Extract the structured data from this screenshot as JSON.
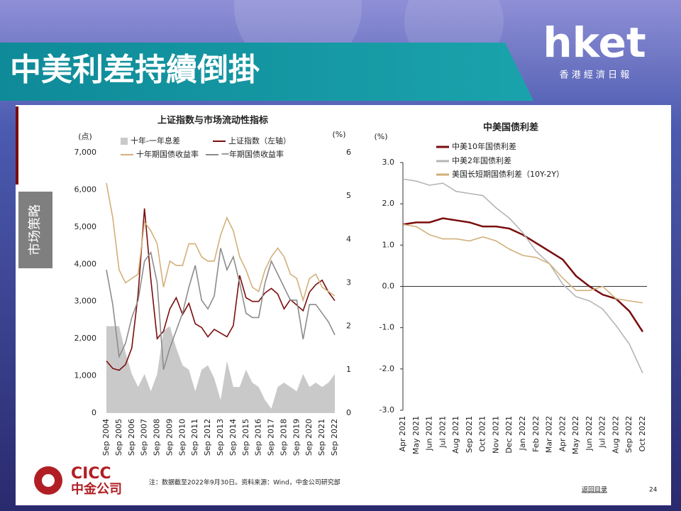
{
  "header": {
    "title": "中美利差持續倒掛",
    "logo": "hket",
    "logo_subtitle": "香 港 經 濟 日 報"
  },
  "sidebar": {
    "label": "市场策略"
  },
  "chart_data": [
    {
      "type": "line",
      "title": "上证指数与市场流动性指标",
      "y_unit": "(点)",
      "y2_unit": "(%)",
      "categories": [
        "Sep 2004",
        null,
        "Sep 2005",
        null,
        "Sep 2006",
        null,
        "Sep 2007",
        null,
        "Sep 2008",
        null,
        "Sep 2009",
        null,
        "Sep 2010",
        null,
        "Sep 2011",
        null,
        "Sep 2012",
        null,
        "Sep 2013",
        null,
        "Sep 2014",
        null,
        "Sep 2015",
        null,
        "Sep 2016",
        null,
        "Sep 2017",
        null,
        "Sep 2018",
        null,
        "Sep 2019",
        null,
        "Sep 2020",
        null,
        "Sep 2021",
        null,
        "Sep 2022"
      ],
      "ylim": [
        0,
        7000
      ],
      "yticks": [
        0,
        {
          "value": 1000,
          "label": "1,000"
        },
        {
          "value": 2000,
          "label": "2,000"
        },
        {
          "value": 3000,
          "label": "3,000"
        },
        {
          "value": 4000,
          "label": "4,000"
        },
        {
          "value": 5000,
          "label": "5,000"
        },
        {
          "value": 6000,
          "label": "6,000"
        },
        {
          "value": 7000,
          "label": "7,000"
        }
      ],
      "y2lim": [
        0,
        6
      ],
      "y2ticks": [
        0,
        1,
        2,
        3,
        4,
        5,
        6
      ],
      "grid": false,
      "series": [
        {
          "name": "十年-一年息差",
          "type": "area",
          "axis": "y2",
          "color": "#c9c9c9",
          "values": [
            2.0,
            2.0,
            2.0,
            1.4,
            0.9,
            0.6,
            0.9,
            0.5,
            0.9,
            1.9,
            2.0,
            1.5,
            1.1,
            1.0,
            0.5,
            1.0,
            1.1,
            0.8,
            0.3,
            1.2,
            0.6,
            0.6,
            1.0,
            0.7,
            0.6,
            0.3,
            0.1,
            0.6,
            0.7,
            0.6,
            0.5,
            0.9,
            0.6,
            0.7,
            0.6,
            0.7,
            0.9
          ]
        },
        {
          "name": "上证指数（左轴）",
          "type": "line",
          "color": "#7a0c0c",
          "values": [
            1400,
            1200,
            1150,
            1300,
            1750,
            3200,
            5500,
            3600,
            2000,
            2200,
            2800,
            3100,
            2650,
            2950,
            2400,
            2300,
            2050,
            2250,
            2150,
            2050,
            2350,
            3700,
            3100,
            3000,
            3000,
            3230,
            3350,
            3200,
            2800,
            3050,
            2900,
            2750,
            3250,
            3450,
            3570,
            3250,
            3020
          ]
        },
        {
          "name": "十年期国债收益率",
          "type": "line",
          "axis": "y2",
          "color": "#d2b07a",
          "values": [
            5.3,
            4.5,
            3.3,
            3.0,
            3.1,
            3.2,
            4.4,
            4.2,
            3.9,
            2.9,
            3.5,
            3.4,
            3.4,
            3.9,
            3.9,
            3.6,
            3.5,
            3.5,
            4.1,
            4.5,
            4.2,
            3.6,
            3.3,
            2.9,
            2.8,
            3.3,
            3.6,
            3.8,
            3.6,
            3.2,
            3.1,
            2.6,
            3.1,
            3.2,
            2.9,
            2.8,
            2.7
          ]
        },
        {
          "name": "一年期国债收益率",
          "type": "line",
          "axis": "y2",
          "color": "#8c8c8c",
          "values": [
            3.3,
            2.5,
            1.3,
            1.6,
            2.2,
            2.6,
            3.5,
            3.7,
            3.0,
            1.0,
            1.5,
            1.9,
            2.3,
            2.9,
            3.4,
            2.6,
            2.4,
            2.7,
            3.8,
            3.3,
            3.6,
            3.0,
            2.3,
            2.2,
            2.2,
            3.0,
            3.5,
            3.2,
            2.9,
            2.6,
            2.6,
            1.7,
            2.5,
            2.5,
            2.3,
            2.1,
            1.8
          ]
        }
      ]
    },
    {
      "type": "line",
      "title": "中美国债利差",
      "y_unit": "(%)",
      "categories": [
        "Apr 2021",
        "May 2021",
        "Jun 2021",
        "Jul 2021",
        "Aug 2021",
        "Sep 2021",
        "Oct 2021",
        "Nov 2021",
        "Dec 2021",
        "Jan 2022",
        "Feb 2022",
        "Mar 2022",
        "Apr 2022",
        "May 2022",
        "Jun 2022",
        "Jul 2022",
        "Aug 2022",
        "Sep 2022",
        "Oct 2022"
      ],
      "ylim": [
        -3,
        3
      ],
      "yticks": [
        {
          "value": -3,
          "label": "-3.0"
        },
        {
          "value": -2,
          "label": "-2.0"
        },
        {
          "value": -1,
          "label": "-1.0"
        },
        {
          "value": 0,
          "label": "0.0"
        },
        {
          "value": 1,
          "label": "1.0"
        },
        {
          "value": 2,
          "label": "2.0"
        },
        {
          "value": 3,
          "label": "3.0"
        }
      ],
      "grid": false,
      "series": [
        {
          "name": "中美10年国债利差",
          "type": "line",
          "color": "#7a0c0c",
          "values": [
            1.5,
            1.55,
            1.55,
            1.65,
            1.6,
            1.55,
            1.45,
            1.45,
            1.4,
            1.25,
            1.05,
            0.85,
            0.65,
            0.25,
            0.0,
            -0.2,
            -0.3,
            -0.6,
            -1.1
          ]
        },
        {
          "name": "中美2年国债利差",
          "type": "line",
          "color": "#b5b5b5",
          "values": [
            2.6,
            2.55,
            2.45,
            2.5,
            2.3,
            2.25,
            2.2,
            1.9,
            1.65,
            1.3,
            0.85,
            0.55,
            0.05,
            -0.25,
            -0.35,
            -0.55,
            -0.95,
            -1.4,
            -2.1
          ]
        },
        {
          "name": "美国长短期国债利差（10Y-2Y）",
          "type": "line",
          "color": "#d2b07a",
          "values": [
            1.5,
            1.45,
            1.25,
            1.15,
            1.15,
            1.1,
            1.2,
            1.1,
            0.9,
            0.75,
            0.7,
            0.55,
            0.2,
            -0.1,
            -0.1,
            0.0,
            -0.3,
            -0.35,
            -0.4
          ]
        }
      ]
    }
  ],
  "footer": {
    "note": "注：数据截至2022年9月30日。资料来源：Wind，中金公司研究部",
    "brand": "CICC",
    "brand_cn": "中金公司",
    "nav": "返回目录",
    "page": "24"
  }
}
